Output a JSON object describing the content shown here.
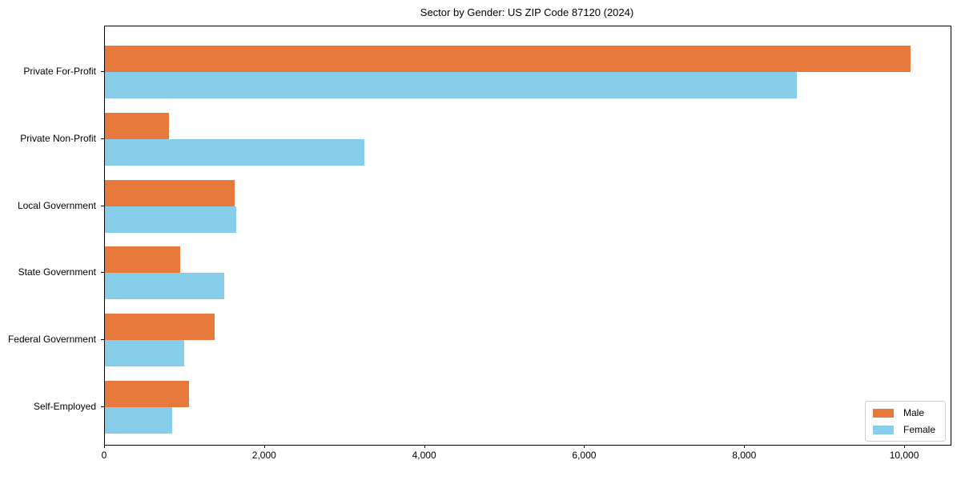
{
  "chart_data": {
    "type": "bar",
    "orientation": "horizontal",
    "title": "Sector by Gender: US ZIP Code 87120 (2024)",
    "categories": [
      "Private For-Profit",
      "Private Non-Profit",
      "Local Government",
      "State Government",
      "Federal Government",
      "Self-Employed"
    ],
    "series": [
      {
        "name": "Male",
        "color": "#e8793d",
        "values": [
          10070,
          800,
          1620,
          940,
          1370,
          1050
        ]
      },
      {
        "name": "Female",
        "color": "#87ceeb",
        "values": [
          8650,
          3240,
          1640,
          1490,
          990,
          840
        ]
      }
    ],
    "xlabel": "",
    "ylabel": "",
    "xlim": [
      0,
      10570
    ],
    "xticks": [
      0,
      2000,
      4000,
      6000,
      8000,
      10000
    ],
    "xtick_labels": [
      "0",
      "2,000",
      "4,000",
      "6,000",
      "8,000",
      "10,000"
    ],
    "grid": false,
    "legend": {
      "position": "lower right",
      "entries": [
        "Male",
        "Female"
      ]
    },
    "colors": {
      "male": "#e8793d",
      "female": "#87ceeb",
      "spine": "#000000",
      "legend_border": "#cccccc",
      "background": "#ffffff"
    }
  }
}
